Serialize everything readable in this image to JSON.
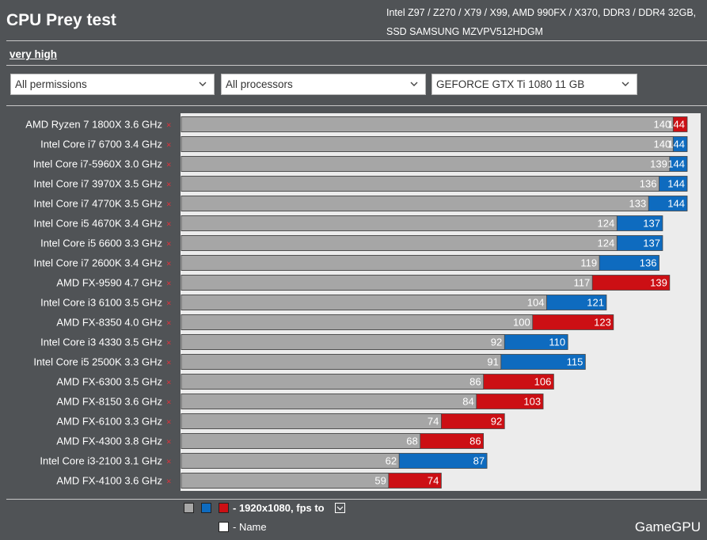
{
  "header": {
    "title": "CPU Prey test",
    "spec_line1": "Intel Z97 / Z270 / X79 / X99, AMD 990FX / X370, DDR3 / DDR4 32GB,",
    "spec_line2": "SSD SAMSUNG MZVPV512HDGM",
    "quality": "very high"
  },
  "filters": {
    "permissions": "All permissions",
    "processors": "All processors",
    "gpu": "GEFORCE GTX Ti 1080 11 GB"
  },
  "colors": {
    "min_bar": "#a6a6a6",
    "intel": "#0e6bbf",
    "amd": "#cc0f14",
    "remove_x": "#e0303a"
  },
  "chart_data": {
    "type": "bar",
    "orientation": "horizontal",
    "stacked": "overlay",
    "categories": [
      "AMD Ryzen 7 1800X 3.6 GHz",
      "Intel Core i7 6700 3.4 GHz",
      "Intel Core i7-5960X 3.0 GHz",
      "Intel Core i7 3970X 3.5 GHz",
      "Intel Core i7 4770K 3.5 GHz",
      "Intel Core i5 4670K 3.4 GHz",
      "Intel Core i5 6600 3.3 GHz",
      "Intel Core i7 2600K 3.4 GHz",
      "AMD FX-9590 4.7 GHz",
      "Intel Core i3 6100 3.5 GHz",
      "AMD FX-8350 4.0 GHz",
      "Intel Core i3 4330 3.5 GHz",
      "Intel Core i5 2500K 3.3 GHz",
      "AMD FX-6300 3.5 GHz",
      "AMD FX-8150 3.6 GHz",
      "AMD FX-6100 3.3 GHz",
      "AMD FX-4300 3.8 GHz",
      "Intel Core i3-2100 3.1 GHz",
      "AMD FX-4100 3.6 GHz"
    ],
    "vendor": [
      "amd",
      "intel",
      "intel",
      "intel",
      "intel",
      "intel",
      "intel",
      "intel",
      "amd",
      "intel",
      "amd",
      "intel",
      "intel",
      "amd",
      "amd",
      "amd",
      "amd",
      "intel",
      "amd"
    ],
    "series": [
      {
        "values": [
          140,
          140,
          139,
          136,
          133,
          124,
          124,
          119,
          117,
          104,
          100,
          92,
          91,
          86,
          84,
          74,
          68,
          62,
          59
        ]
      },
      {
        "values": [
          144,
          144,
          144,
          144,
          144,
          137,
          137,
          136,
          139,
          121,
          123,
          110,
          115,
          106,
          103,
          92,
          86,
          87,
          74
        ]
      }
    ],
    "xlim": [
      0,
      160
    ],
    "remove_mark": "×",
    "legend": {
      "resolution_label": " - 1920x1080, fps to",
      "name_label": " - Name"
    }
  },
  "watermark": "GameGPU"
}
